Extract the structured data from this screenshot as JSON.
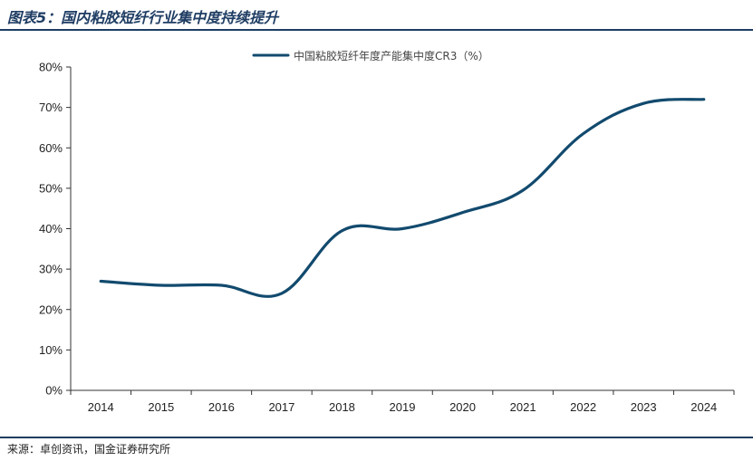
{
  "header": {
    "title": "图表5：国内粘胶短纤行业集中度持续提升"
  },
  "footer": {
    "source": "来源：卓创资讯，国金证券研究所"
  },
  "colors": {
    "accent": "#1f3d63",
    "series": "#124a6e"
  },
  "chart_data": {
    "type": "line",
    "title": "",
    "xlabel": "",
    "ylabel": "",
    "x": [
      "2014",
      "2015",
      "2016",
      "2017",
      "2018",
      "2019",
      "2020",
      "2021",
      "2022",
      "2023",
      "2024"
    ],
    "series": [
      {
        "name": "中国粘胶短纤年度产能集中度CR3（%）",
        "values": [
          27,
          26,
          26,
          24,
          39.5,
          40,
          44,
          49.5,
          63.5,
          71,
          72
        ]
      }
    ],
    "ylim": [
      0,
      80
    ],
    "yticks": [
      "0%",
      "10%",
      "20%",
      "30%",
      "40%",
      "50%",
      "60%",
      "70%",
      "80%"
    ],
    "grid": false,
    "legend": "top-center",
    "smooth": true
  }
}
